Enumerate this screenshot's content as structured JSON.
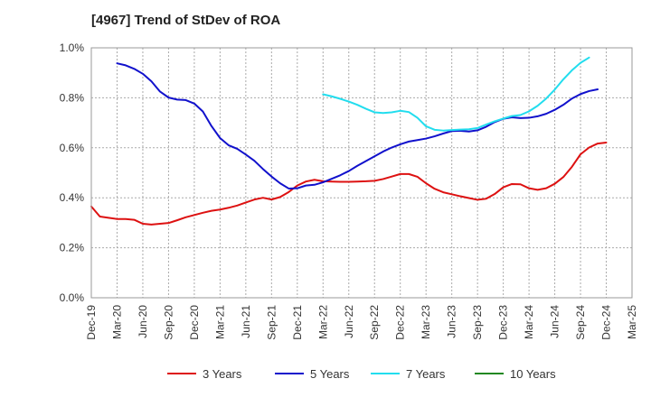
{
  "chart_data": {
    "type": "line",
    "title": "[4967]  Trend of StDev of ROA",
    "xlabel": "",
    "ylabel": "",
    "x_tick_labels": [
      "Dec-19",
      "Mar-20",
      "Jun-20",
      "Sep-20",
      "Dec-20",
      "Mar-21",
      "Jun-21",
      "Sep-21",
      "Dec-21",
      "Mar-22",
      "Jun-22",
      "Sep-22",
      "Dec-22",
      "Mar-23",
      "Jun-23",
      "Sep-23",
      "Dec-23",
      "Mar-24",
      "Jun-24",
      "Sep-24",
      "Dec-24",
      "Mar-25"
    ],
    "y_tick_labels": [
      "0.0%",
      "0.2%",
      "0.4%",
      "0.6%",
      "0.8%",
      "1.0%"
    ],
    "ylim": [
      0,
      1.0
    ],
    "grid": true,
    "legend_position": "bottom",
    "series": [
      {
        "name": "3 Years",
        "color": "#dd1111",
        "start_index": 0,
        "values": [
          0.365,
          0.325,
          0.32,
          0.315,
          0.315,
          0.312,
          0.296,
          0.293,
          0.296,
          0.299,
          0.31,
          0.322,
          0.331,
          0.34,
          0.348,
          0.353,
          0.36,
          0.369,
          0.381,
          0.393,
          0.4,
          0.393,
          0.403,
          0.423,
          0.449,
          0.465,
          0.472,
          0.466,
          0.465,
          0.464,
          0.464,
          0.465,
          0.466,
          0.468,
          0.475,
          0.485,
          0.495,
          0.495,
          0.484,
          0.458,
          0.436,
          0.422,
          0.414,
          0.406,
          0.399,
          0.392,
          0.396,
          0.415,
          0.442,
          0.455,
          0.454,
          0.438,
          0.432,
          0.438,
          0.456,
          0.483,
          0.524,
          0.574,
          0.601,
          0.617,
          0.621
        ]
      },
      {
        "name": "5 Years",
        "color": "#1111cc",
        "start_index": 3,
        "values": [
          0.938,
          0.93,
          0.916,
          0.896,
          0.866,
          0.825,
          0.801,
          0.793,
          0.791,
          0.777,
          0.745,
          0.687,
          0.639,
          0.61,
          0.596,
          0.573,
          0.548,
          0.515,
          0.485,
          0.458,
          0.437,
          0.438,
          0.449,
          0.452,
          0.462,
          0.476,
          0.49,
          0.507,
          0.528,
          0.547,
          0.566,
          0.585,
          0.601,
          0.614,
          0.625,
          0.631,
          0.637,
          0.646,
          0.657,
          0.667,
          0.668,
          0.665,
          0.67,
          0.684,
          0.703,
          0.716,
          0.722,
          0.719,
          0.72,
          0.726,
          0.736,
          0.752,
          0.772,
          0.797,
          0.815,
          0.827,
          0.834
        ]
      },
      {
        "name": "7 Years",
        "color": "#22ddee",
        "start_index": 27,
        "values": [
          0.814,
          0.806,
          0.796,
          0.785,
          0.772,
          0.756,
          0.742,
          0.739,
          0.742,
          0.748,
          0.743,
          0.72,
          0.686,
          0.672,
          0.669,
          0.671,
          0.673,
          0.674,
          0.679,
          0.693,
          0.706,
          0.717,
          0.727,
          0.731,
          0.746,
          0.768,
          0.797,
          0.833,
          0.874,
          0.91,
          0.94,
          0.961
        ]
      },
      {
        "name": "10 Years",
        "color": "#228822",
        "start_index": 0,
        "values": []
      }
    ]
  }
}
